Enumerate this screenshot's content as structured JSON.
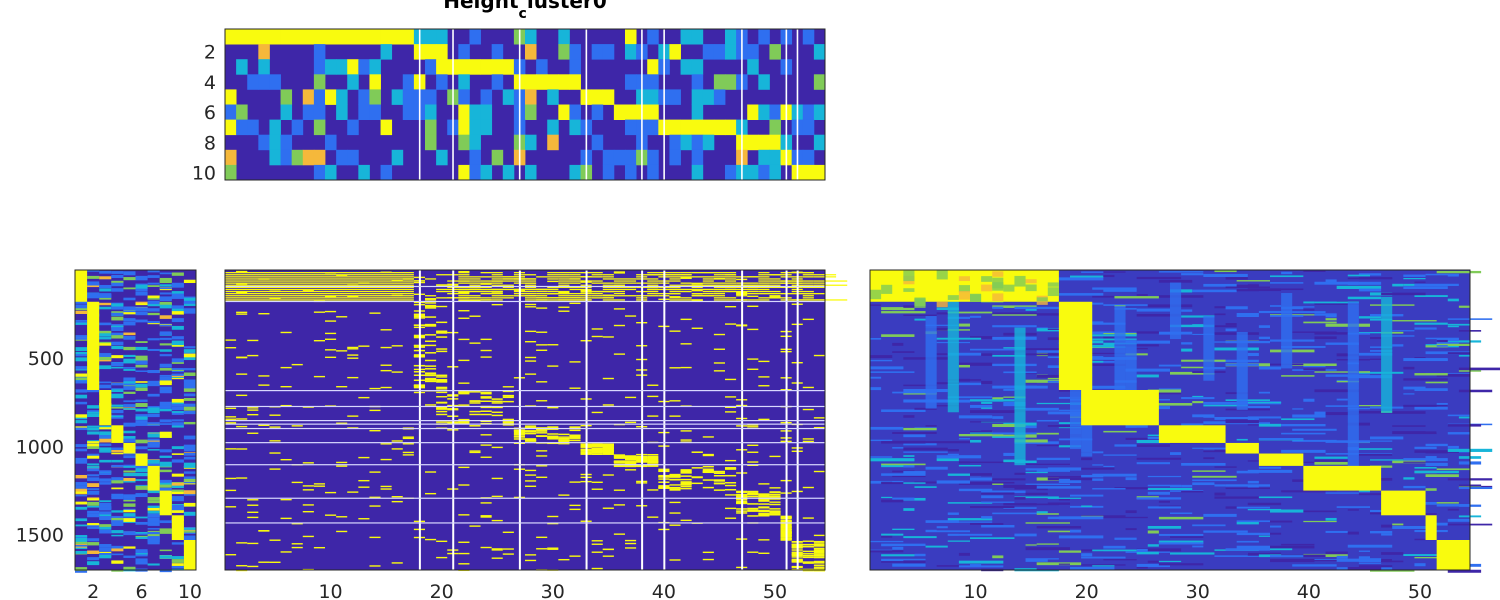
{
  "colors": {
    "low": "#3e26a8",
    "mid_blue": "#2f6ff0",
    "cyan": "#17b5d9",
    "green": "#80cb58",
    "orange": "#f5b83b",
    "high": "#f9fb0e",
    "gap": "#ffffff",
    "axis": "#262626"
  },
  "chart_data": [
    {
      "type": "heatmap",
      "panel": "top",
      "title_main": "Height",
      "title_sub": "c",
      "title_tail": "luster0",
      "n_rows": 10,
      "n_cols": 54,
      "ytick_labels": [
        "2",
        "4",
        "6",
        "8",
        "10"
      ],
      "ytick_values": [
        2,
        4,
        6,
        8,
        10
      ],
      "diagonal_blocks": [
        {
          "row": 1,
          "cols": [
            1,
            17
          ]
        },
        {
          "row": 2,
          "cols": [
            18,
            20
          ]
        },
        {
          "row": 3,
          "cols": [
            20,
            26
          ]
        },
        {
          "row": 4,
          "cols": [
            27,
            32
          ]
        },
        {
          "row": 5,
          "cols": [
            33,
            35
          ]
        },
        {
          "row": 6,
          "cols": [
            36,
            39
          ]
        },
        {
          "row": 7,
          "cols": [
            40,
            46
          ]
        },
        {
          "row": 8,
          "cols": [
            47,
            50
          ]
        },
        {
          "row": 9,
          "cols": [
            51,
            51
          ]
        },
        {
          "row": 10,
          "cols": [
            52,
            54
          ]
        }
      ],
      "gap_columns": [
        18,
        21,
        27,
        33,
        38,
        40,
        47,
        51,
        52
      ]
    },
    {
      "type": "heatmap",
      "panel": "bottom-left",
      "n_rows": 1700,
      "n_cols": 10,
      "ytick_labels": [
        "500",
        "1000",
        "1500"
      ],
      "ytick_values": [
        500,
        1000,
        1500
      ],
      "xtick_labels": [
        "2",
        "6",
        "10"
      ],
      "xtick_values": [
        2,
        6,
        10
      ],
      "row_boundaries": [
        180,
        680,
        880,
        980,
        1040,
        1110,
        1250,
        1390,
        1530,
        1700
      ]
    },
    {
      "type": "heatmap",
      "panel": "bottom-middle",
      "n_rows": 1700,
      "n_cols": 54,
      "xtick_labels": [
        "10",
        "20",
        "30",
        "40",
        "50"
      ],
      "xtick_values": [
        10,
        20,
        30,
        40,
        50
      ],
      "gap_columns": [
        18,
        21,
        27,
        33,
        38,
        40,
        47,
        51,
        52
      ],
      "gap_rows": [
        90,
        175,
        680,
        770,
        850,
        870,
        895,
        975,
        1100,
        1290,
        1430
      ]
    },
    {
      "type": "heatmap",
      "panel": "bottom-right",
      "n_rows": 1700,
      "n_cols": 54,
      "xtick_labels": [
        "10",
        "20",
        "30",
        "40",
        "50"
      ],
      "xtick_values": [
        10,
        20,
        30,
        40,
        50
      ]
    }
  ]
}
